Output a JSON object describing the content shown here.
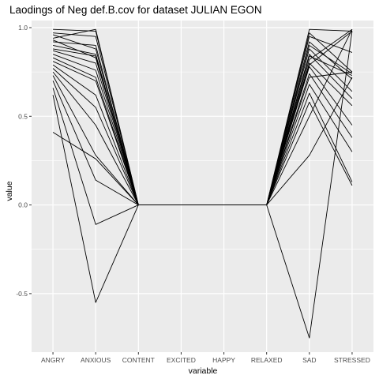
{
  "chart_data": {
    "type": "line",
    "title": "Laodings of Neg def.B.cov for dataset JULIAN EGON",
    "xlabel": "variable",
    "ylabel": "value",
    "categories": [
      "ANGRY",
      "ANXIOUS",
      "CONTENT",
      "EXCITED",
      "HAPPY",
      "RELAXED",
      "SAD",
      "STRESSED"
    ],
    "ylim": [
      -0.83,
      1.04
    ],
    "yticks": [
      -0.5,
      0.0,
      0.5,
      1.0
    ],
    "ytick_labels": [
      "-0.5",
      "0.0",
      "0.5",
      "1.0"
    ],
    "grid": true,
    "panel_background": "#ebebeb",
    "grid_color": "#ffffff",
    "line_color": "#000000",
    "series": [
      {
        "values": [
          0.99,
          0.98,
          0.0,
          0.0,
          0.0,
          0.0,
          0.99,
          0.98
        ]
      },
      {
        "values": [
          0.97,
          0.95,
          0.0,
          0.0,
          0.0,
          0.0,
          0.97,
          0.75
        ]
      },
      {
        "values": [
          0.94,
          0.99,
          0.0,
          0.0,
          0.0,
          0.0,
          0.95,
          0.86
        ]
      },
      {
        "values": [
          0.92,
          0.9,
          0.0,
          0.0,
          0.0,
          0.0,
          0.92,
          0.71
        ]
      },
      {
        "values": [
          0.9,
          0.85,
          0.0,
          0.0,
          0.0,
          0.0,
          0.9,
          0.74
        ]
      },
      {
        "values": [
          0.88,
          0.84,
          0.0,
          0.0,
          0.0,
          0.0,
          0.88,
          0.64
        ]
      },
      {
        "values": [
          0.87,
          0.8,
          0.0,
          0.0,
          0.0,
          0.0,
          0.85,
          0.6
        ]
      },
      {
        "values": [
          0.85,
          0.76,
          0.0,
          0.0,
          0.0,
          0.0,
          0.84,
          0.73
        ]
      },
      {
        "values": [
          0.83,
          0.72,
          0.0,
          0.0,
          0.0,
          0.0,
          0.82,
          0.99
        ]
      },
      {
        "values": [
          0.81,
          0.7,
          0.0,
          0.0,
          0.0,
          0.0,
          0.8,
          0.56
        ]
      },
      {
        "values": [
          0.79,
          0.62,
          0.0,
          0.0,
          0.0,
          0.0,
          0.79,
          0.98
        ]
      },
      {
        "values": [
          0.77,
          0.55,
          0.0,
          0.0,
          0.0,
          0.0,
          0.78,
          0.45
        ]
      },
      {
        "values": [
          0.75,
          0.45,
          0.0,
          0.0,
          0.0,
          0.0,
          0.74,
          0.38
        ]
      },
      {
        "values": [
          0.73,
          0.28,
          0.0,
          0.0,
          0.0,
          0.0,
          0.72,
          0.75
        ]
      },
      {
        "values": [
          0.7,
          0.14,
          0.0,
          0.0,
          0.0,
          0.0,
          0.68,
          0.3
        ]
      },
      {
        "values": [
          0.66,
          -0.11,
          0.0,
          0.0,
          0.0,
          0.0,
          0.63,
          0.13
        ]
      },
      {
        "values": [
          0.62,
          -0.55,
          0.0,
          0.0,
          0.0,
          0.0,
          0.58,
          0.11
        ]
      },
      {
        "values": [
          0.41,
          0.26,
          0.0,
          0.0,
          0.0,
          0.0,
          0.5,
          0.99
        ]
      },
      {
        "values": [
          0.93,
          0.83,
          0.0,
          0.0,
          0.0,
          0.0,
          0.28,
          0.72
        ]
      },
      {
        "values": [
          0.96,
          0.88,
          0.0,
          0.0,
          0.0,
          0.0,
          -0.75,
          0.98
        ]
      }
    ]
  }
}
